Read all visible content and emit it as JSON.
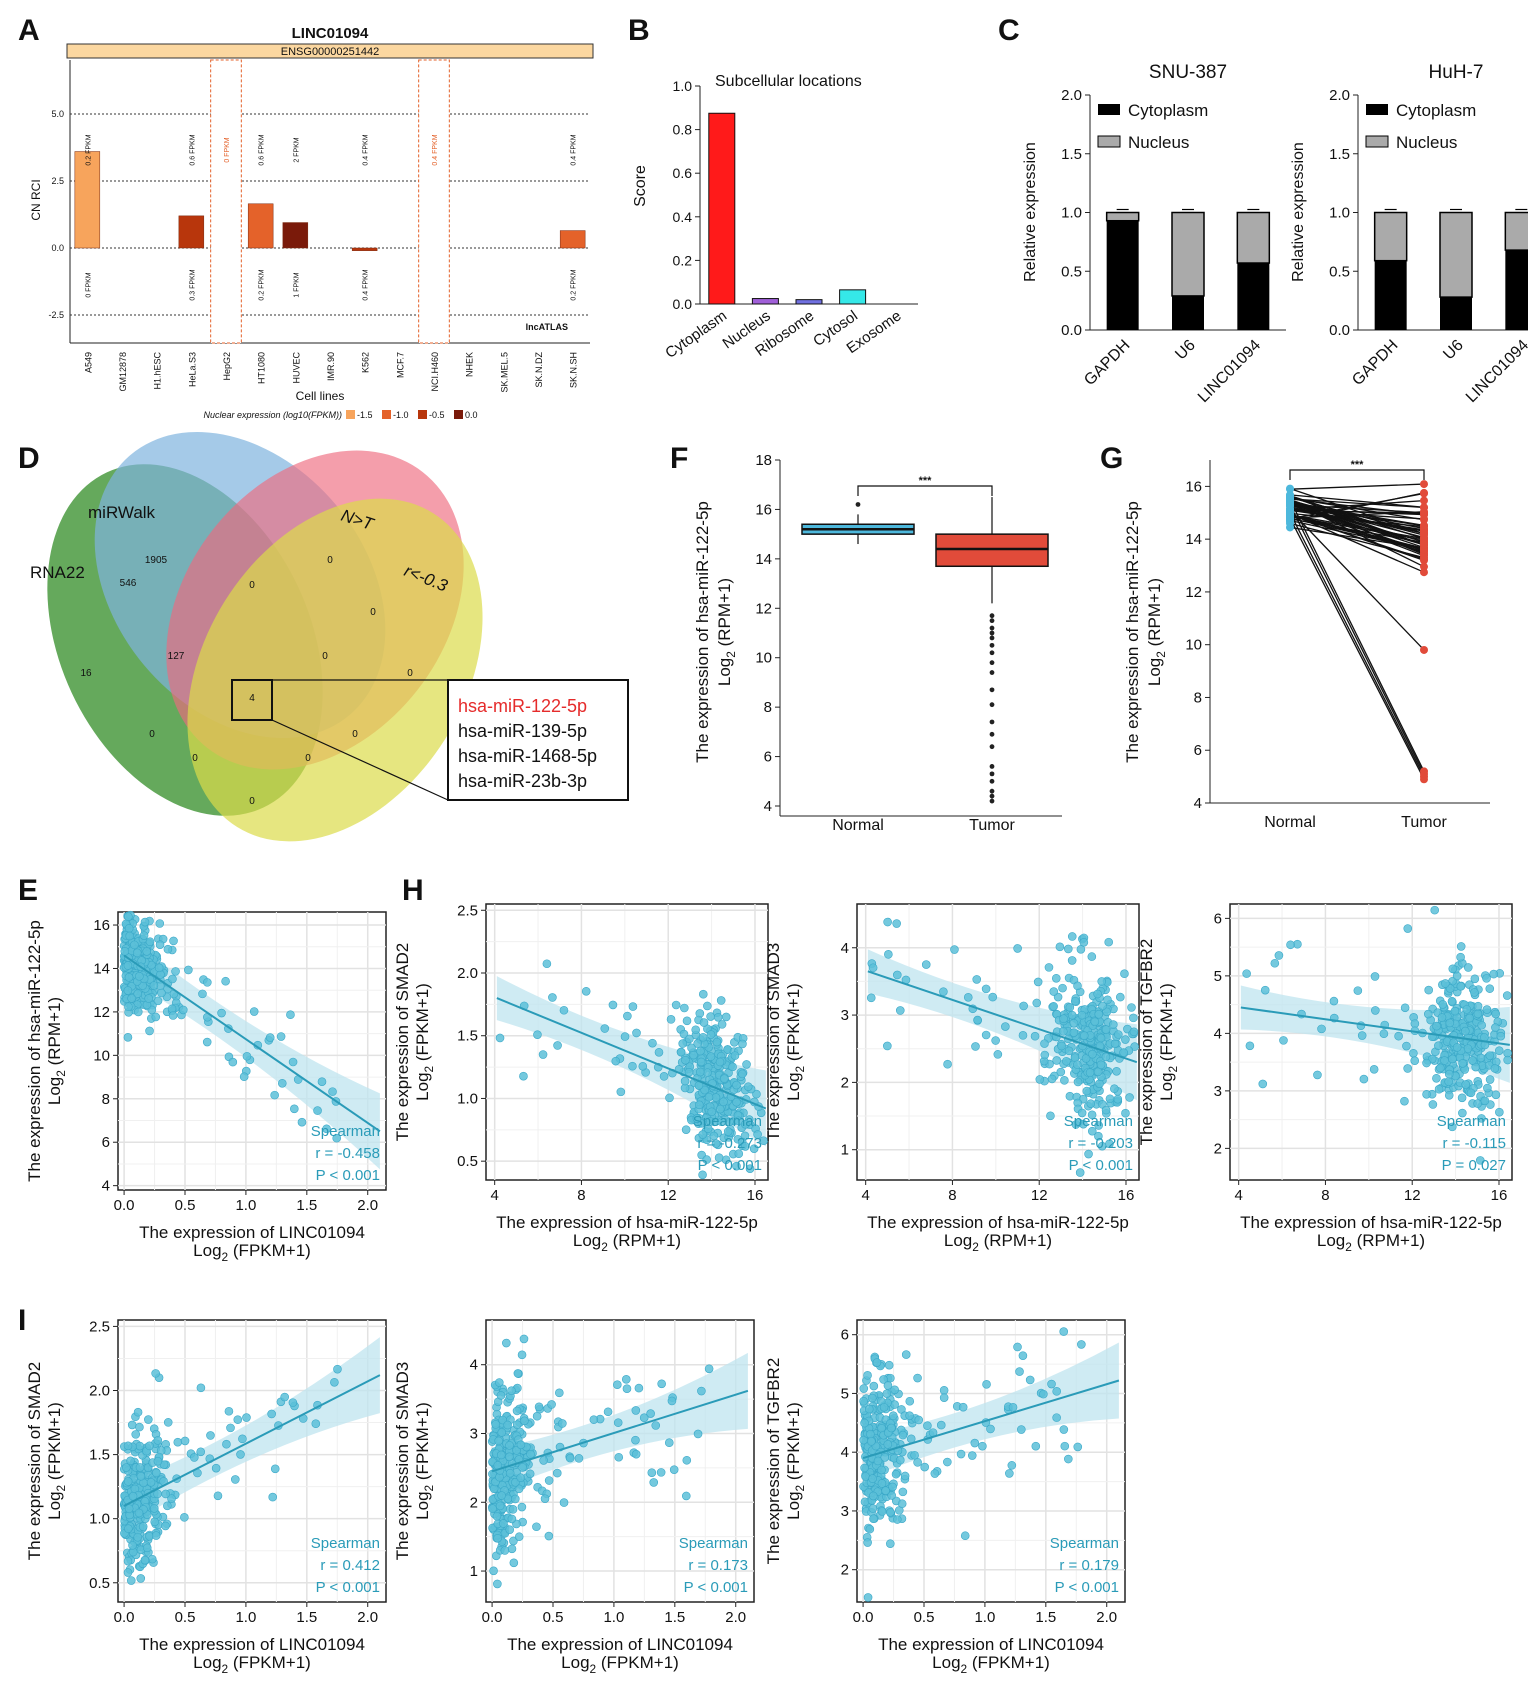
{
  "panel_labels": {
    "A": "A",
    "B": "B",
    "C": "C",
    "D": "D",
    "E": "E",
    "F": "F",
    "G": "G",
    "H": "H",
    "I": "I"
  },
  "chart_data": [
    {
      "id": "A",
      "type": "bar",
      "title": "LINC01094",
      "subtitle": "ENSG00000251442",
      "ylabel": "CN RCI",
      "xlabel": "Cell lines",
      "ylim": [
        -2.5,
        5.0
      ],
      "yticks": [
        "5.0",
        "2.5",
        "0.0",
        "-2.5"
      ],
      "watermark": "lncATLAS",
      "categories": [
        "A549",
        "GM12878",
        "H1.hESC",
        "HeLa.S3",
        "HepG2",
        "HT1080",
        "HUVEC",
        "IMR.90",
        "K562",
        "MCF.7",
        "NCI.H460",
        "NHEK",
        "SK.MEL.5",
        "SK.N.DZ",
        "SK.N.SH"
      ],
      "values": [
        3.6,
        null,
        null,
        1.2,
        0.0,
        1.65,
        0.95,
        null,
        -0.1,
        null,
        0.0,
        null,
        null,
        null,
        0.65
      ],
      "color_group": [
        0,
        null,
        null,
        2,
        1,
        1,
        3,
        null,
        2,
        null,
        1,
        null,
        null,
        null,
        1
      ],
      "dashed_cells": [
        "HepG2",
        "NCI.H460"
      ],
      "top_labels": [
        "0.2 FPKM",
        "",
        "",
        "0.6 FPKM",
        "0 FPKM",
        "0.6 FPKM",
        "2 FPKM",
        "",
        "0.4 FPKM",
        "",
        "0.4 FPKM",
        "",
        "",
        "",
        "0.4 FPKM"
      ],
      "bottom_labels": [
        "0 FPKM",
        "",
        "",
        "0.3 FPKM",
        "",
        "0.2 FPKM",
        "1 FPKM",
        "",
        "0.4 FPKM",
        "",
        "",
        "",
        "",
        "",
        "0.2 FPKM"
      ],
      "legend_title": "Nuclear expression (log10(FPKM))",
      "legend": [
        {
          "label": "-1.5",
          "color": "#f7a45c"
        },
        {
          "label": "-1.0",
          "color": "#e4622a"
        },
        {
          "label": "-0.5",
          "color": "#b8360c"
        },
        {
          "label": "0.0",
          "color": "#7a1a0a"
        }
      ]
    },
    {
      "id": "B",
      "type": "bar",
      "title": "Subcellular locations",
      "ylabel": "Score",
      "ylim": [
        0,
        1.0
      ],
      "yticks": [
        "0.0",
        "0.2",
        "0.4",
        "0.6",
        "0.8",
        "1.0"
      ],
      "categories": [
        "Cytoplasm",
        "Nucleus",
        "Ribosome",
        "Cytosol",
        "Exosome"
      ],
      "values": [
        0.875,
        0.025,
        0.02,
        0.065,
        0.0
      ],
      "colors": [
        "#ff1a1a",
        "#a05fd8",
        "#7070e0",
        "#35e8e8",
        "#2fd07a"
      ]
    },
    {
      "id": "C1",
      "type": "bar",
      "title": "SNU-387",
      "ylabel": "Relative expression",
      "ylim": [
        0,
        2.0
      ],
      "yticks": [
        "0.0",
        "0.5",
        "1.0",
        "1.5",
        "2.0"
      ],
      "categories": [
        "GAPDH",
        "U6",
        "LINC01094"
      ],
      "series": [
        {
          "name": "Cytoplasm",
          "values": [
            0.93,
            0.29,
            0.57
          ]
        },
        {
          "name": "Nucleus",
          "values": [
            0.07,
            0.71,
            0.43
          ]
        }
      ]
    },
    {
      "id": "C2",
      "type": "bar",
      "title": "HuH-7",
      "ylabel": "Relative expression",
      "ylim": [
        0,
        2.0
      ],
      "yticks": [
        "0.0",
        "0.5",
        "1.0",
        "1.5",
        "2.0"
      ],
      "categories": [
        "GAPDH",
        "U6",
        "LINC01094"
      ],
      "series": [
        {
          "name": "Cytoplasm",
          "values": [
            0.59,
            0.28,
            0.68
          ]
        },
        {
          "name": "Nucleus",
          "values": [
            0.41,
            0.72,
            0.32
          ]
        }
      ]
    },
    {
      "id": "D",
      "type": "venn",
      "sets": [
        "miRWalk",
        "N>T",
        "RNA22",
        "r<-0.3"
      ],
      "counts": [
        "1905",
        "0",
        "546",
        "0",
        "0",
        "16",
        "127",
        "0",
        "4",
        "0",
        "0",
        "0",
        "0",
        "0",
        "0"
      ],
      "highlight_list": [
        "hsa-miR-122-5p",
        "hsa-miR-139-5p",
        "hsa-miR-1468-5p",
        "hsa-miR-23b-3p"
      ]
    },
    {
      "id": "F",
      "type": "box",
      "ylabel": "The expression of hsa-miR-122-5p",
      "ylabel2": "Log",
      "ylabel2_sub": "2",
      "ylabel2_tail": " (RPM+1)",
      "ylim": [
        4,
        18
      ],
      "yticks": [
        "4",
        "6",
        "8",
        "10",
        "12",
        "14",
        "16",
        "18"
      ],
      "categories": [
        "Normal",
        "Tumor"
      ],
      "significance": "***",
      "boxes": [
        {
          "min": 14.6,
          "q1": 15.0,
          "median": 15.2,
          "q3": 15.4,
          "max": 15.8,
          "outliers": [
            16.2
          ]
        },
        {
          "min": 12.2,
          "q1": 13.7,
          "median": 14.4,
          "q3": 15.0,
          "max": 16.5,
          "outliers": [
            11.7,
            11.5,
            11.2,
            11.0,
            10.8,
            10.5,
            10.2,
            9.8,
            9.4,
            8.7,
            8.1,
            7.4,
            6.9,
            6.4,
            5.6,
            5.3,
            5.0,
            4.6,
            4.4,
            4.2
          ]
        }
      ],
      "colors": [
        "#4db8dc",
        "#e14b3a"
      ]
    },
    {
      "id": "G",
      "type": "paired",
      "ylabel": "The expression of hsa-miR-122-5p",
      "ylabel2": "Log",
      "ylabel2_sub": "2",
      "ylabel2_tail": " (RPM+1)",
      "ylim": [
        4,
        17
      ],
      "yticks": [
        "4",
        "6",
        "8",
        "10",
        "12",
        "14",
        "16"
      ],
      "categories": [
        "Normal",
        "Tumor"
      ],
      "significance": "***",
      "colors": [
        "#4db8dc",
        "#e14b3a"
      ]
    },
    {
      "id": "E",
      "type": "scatter",
      "xlabel": "The expression of LINC01094",
      "xlabel2": "Log",
      "xlabel2_sub": "2",
      "xlabel2_tail": " (FPKM+1)",
      "ylabel": "The expression of hsa-miR-122-5p",
      "ylabel2": "Log",
      "ylabel2_sub": "2",
      "ylabel2_tail": " (RPM+1)",
      "xlim": [
        -0.05,
        2.15
      ],
      "ylim": [
        3.8,
        16.6
      ],
      "xticks": [
        0,
        0.5,
        1.0,
        1.5,
        2.0
      ],
      "xtick_labels": [
        "0.0",
        "0.5",
        "1.0",
        "1.5",
        "2.0"
      ],
      "yticks": [
        4,
        6,
        8,
        10,
        12,
        14,
        16
      ],
      "ytick_labels": [
        "4",
        "6",
        "8",
        "10",
        "12",
        "14",
        "16"
      ],
      "fit": {
        "x0": 0.0,
        "y0": 14.6,
        "x1": 2.1,
        "y1": 6.5
      },
      "stats": [
        "Spearman",
        "r = -0.458",
        "P < 0.001"
      ]
    },
    {
      "id": "H1",
      "type": "scatter",
      "xlabel": "The expression of hsa-miR-122-5p",
      "xlabel2": "Log",
      "xlabel2_sub": "2",
      "xlabel2_tail": " (RPM+1)",
      "ylabel": "The expression of SMAD2",
      "ylabel2": "Log",
      "ylabel2_sub": "2",
      "ylabel2_tail": " (FPKM+1)",
      "xlim": [
        3.6,
        16.6
      ],
      "ylim": [
        0.35,
        2.55
      ],
      "xticks": [
        4,
        8,
        12,
        16
      ],
      "xtick_labels": [
        "4",
        "8",
        "12",
        "16"
      ],
      "yticks": [
        0.5,
        1.0,
        1.5,
        2.0,
        2.5
      ],
      "ytick_labels": [
        "0.5",
        "1.0",
        "1.5",
        "2.0",
        "2.5"
      ],
      "fit": {
        "x0": 4.1,
        "y0": 1.8,
        "x1": 16.5,
        "y1": 0.92
      },
      "stats": [
        "Spearman",
        "r = -0.273",
        "P < 0.001"
      ]
    },
    {
      "id": "H2",
      "type": "scatter",
      "xlabel": "The expression of hsa-miR-122-5p",
      "xlabel2": "Log",
      "xlabel2_sub": "2",
      "xlabel2_tail": " (RPM+1)",
      "ylabel": "The expression of SMAD3",
      "ylabel2": "Log",
      "ylabel2_sub": "2",
      "ylabel2_tail": " (FPKM+1)",
      "xlim": [
        3.6,
        16.6
      ],
      "ylim": [
        0.55,
        4.65
      ],
      "xticks": [
        4,
        8,
        12,
        16
      ],
      "xtick_labels": [
        "4",
        "8",
        "12",
        "16"
      ],
      "yticks": [
        1,
        2,
        3,
        4
      ],
      "ytick_labels": [
        "1",
        "2",
        "3",
        "4"
      ],
      "fit": {
        "x0": 4.1,
        "y0": 3.65,
        "x1": 16.5,
        "y1": 2.3
      },
      "stats": [
        "Spearman",
        "r = -0.203",
        "P < 0.001"
      ]
    },
    {
      "id": "H3",
      "type": "scatter",
      "xlabel": "The expression of hsa-miR-122-5p",
      "xlabel2": "Log",
      "xlabel2_sub": "2",
      "xlabel2_tail": " (RPM+1)",
      "ylabel": "The expression of TGFBR2",
      "ylabel2": "Log",
      "ylabel2_sub": "2",
      "ylabel2_tail": " (FPKM+1)",
      "xlim": [
        3.6,
        16.6
      ],
      "ylim": [
        1.45,
        6.25
      ],
      "xticks": [
        4,
        8,
        12,
        16
      ],
      "xtick_labels": [
        "4",
        "8",
        "12",
        "16"
      ],
      "yticks": [
        2,
        3,
        4,
        5,
        6
      ],
      "ytick_labels": [
        "2",
        "3",
        "4",
        "5",
        "6"
      ],
      "fit": {
        "x0": 4.1,
        "y0": 4.45,
        "x1": 16.5,
        "y1": 3.8
      },
      "stats": [
        "Spearman",
        "r = -0.115",
        "P = 0.027"
      ]
    },
    {
      "id": "I1",
      "type": "scatter",
      "xlabel": "The expression of LINC01094",
      "xlabel2": "Log",
      "xlabel2_sub": "2",
      "xlabel2_tail": " (FPKM+1)",
      "ylabel": "The expression of SMAD2",
      "ylabel2": "Log",
      "ylabel2_sub": "2",
      "ylabel2_tail": " (FPKM+1)",
      "xlim": [
        -0.05,
        2.15
      ],
      "ylim": [
        0.35,
        2.55
      ],
      "xticks": [
        0,
        0.5,
        1.0,
        1.5,
        2.0
      ],
      "xtick_labels": [
        "0.0",
        "0.5",
        "1.0",
        "1.5",
        "2.0"
      ],
      "yticks": [
        0.5,
        1.0,
        1.5,
        2.0,
        2.5
      ],
      "ytick_labels": [
        "0.5",
        "1.0",
        "1.5",
        "2.0",
        "2.5"
      ],
      "fit": {
        "x0": 0.0,
        "y0": 1.1,
        "x1": 2.1,
        "y1": 2.12
      },
      "stats": [
        "Spearman",
        "r = 0.412",
        "P < 0.001"
      ]
    },
    {
      "id": "I2",
      "type": "scatter",
      "xlabel": "The expression of LINC01094",
      "xlabel2": "Log",
      "xlabel2_sub": "2",
      "xlabel2_tail": " (FPKM+1)",
      "ylabel": "The expression of SMAD3",
      "ylabel2": "Log",
      "ylabel2_sub": "2",
      "ylabel2_tail": " (FPKM+1)",
      "xlim": [
        -0.05,
        2.15
      ],
      "ylim": [
        0.55,
        4.65
      ],
      "xticks": [
        0,
        0.5,
        1.0,
        1.5,
        2.0
      ],
      "xtick_labels": [
        "0.0",
        "0.5",
        "1.0",
        "1.5",
        "2.0"
      ],
      "yticks": [
        1,
        2,
        3,
        4
      ],
      "ytick_labels": [
        "1",
        "2",
        "3",
        "4"
      ],
      "fit": {
        "x0": 0.0,
        "y0": 2.45,
        "x1": 2.1,
        "y1": 3.62
      },
      "stats": [
        "Spearman",
        "r = 0.173",
        "P < 0.001"
      ]
    },
    {
      "id": "I3",
      "type": "scatter",
      "xlabel": "The expression of LINC01094",
      "xlabel2": "Log",
      "xlabel2_sub": "2",
      "xlabel2_tail": " (FPKM+1)",
      "ylabel": "The expression of TGFBR2",
      "ylabel2": "Log",
      "ylabel2_sub": "2",
      "ylabel2_tail": " (FPKM+1)",
      "xlim": [
        -0.05,
        2.15
      ],
      "ylim": [
        1.45,
        6.25
      ],
      "xticks": [
        0,
        0.5,
        1.0,
        1.5,
        2.0
      ],
      "xtick_labels": [
        "0.0",
        "0.5",
        "1.0",
        "1.5",
        "2.0"
      ],
      "yticks": [
        2,
        3,
        4,
        5,
        6
      ],
      "ytick_labels": [
        "2",
        "3",
        "4",
        "5",
        "6"
      ],
      "fit": {
        "x0": 0.0,
        "y0": 3.9,
        "x1": 2.1,
        "y1": 5.22
      },
      "stats": [
        "Spearman",
        "r = 0.179",
        "P < 0.001"
      ]
    }
  ]
}
